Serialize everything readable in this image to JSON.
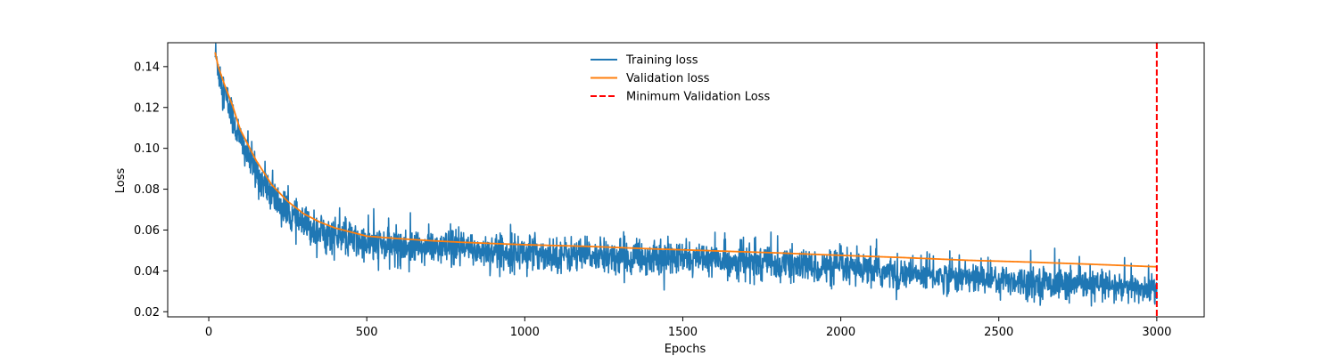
{
  "chart_data": {
    "type": "line",
    "xlabel": "Epochs",
    "ylabel": "Loss",
    "xlim": [
      -130,
      3150
    ],
    "ylim": [
      0.0175,
      0.1517
    ],
    "xticks": [
      0,
      500,
      1000,
      1500,
      2000,
      2500,
      3000
    ],
    "yticks": [
      0.02,
      0.04,
      0.06,
      0.08,
      0.1,
      0.12,
      0.14
    ],
    "ytick_labels": [
      "0.02",
      "0.04",
      "0.06",
      "0.08",
      "0.10",
      "0.12",
      "0.14"
    ],
    "legend_position": "upper-center",
    "series": [
      {
        "name": "Training loss",
        "color": "#1f77b4",
        "style": "solid",
        "x_range": [
          20,
          3000
        ],
        "noise_amplitude": 0.011,
        "trend": [
          [
            20,
            0.146
          ],
          [
            50,
            0.127
          ],
          [
            100,
            0.104
          ],
          [
            150,
            0.088
          ],
          [
            200,
            0.077
          ],
          [
            250,
            0.068
          ],
          [
            300,
            0.062
          ],
          [
            400,
            0.057
          ],
          [
            500,
            0.053
          ],
          [
            750,
            0.051
          ],
          [
            1000,
            0.049
          ],
          [
            1250,
            0.047
          ],
          [
            1500,
            0.046
          ],
          [
            1750,
            0.044
          ],
          [
            2000,
            0.041
          ],
          [
            2250,
            0.038
          ],
          [
            2500,
            0.036
          ],
          [
            2750,
            0.033
          ],
          [
            3000,
            0.031
          ]
        ]
      },
      {
        "name": "Validation loss",
        "color": "#ff7f0e",
        "style": "solid",
        "values": [
          [
            20,
            0.147
          ],
          [
            30,
            0.14
          ],
          [
            50,
            0.131
          ],
          [
            75,
            0.121
          ],
          [
            100,
            0.109
          ],
          [
            150,
            0.094
          ],
          [
            200,
            0.082
          ],
          [
            250,
            0.074
          ],
          [
            300,
            0.068
          ],
          [
            350,
            0.064
          ],
          [
            400,
            0.061
          ],
          [
            450,
            0.059
          ],
          [
            500,
            0.057
          ],
          [
            600,
            0.0558
          ],
          [
            700,
            0.0548
          ],
          [
            800,
            0.054
          ],
          [
            1000,
            0.0528
          ],
          [
            1200,
            0.052
          ],
          [
            1400,
            0.0508
          ],
          [
            1600,
            0.0498
          ],
          [
            1800,
            0.0488
          ],
          [
            2000,
            0.0476
          ],
          [
            2200,
            0.0465
          ],
          [
            2400,
            0.0452
          ],
          [
            2600,
            0.0443
          ],
          [
            2800,
            0.0432
          ],
          [
            3000,
            0.042
          ]
        ]
      },
      {
        "name": "Minimum Validation Loss",
        "color": "#ff0000",
        "style": "dashed",
        "type": "vline",
        "x": 3000
      }
    ]
  }
}
